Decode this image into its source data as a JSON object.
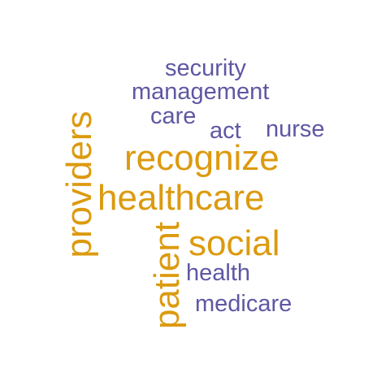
{
  "colors": {
    "background": "#ffffff",
    "purple": "#5e57a3",
    "gold": "#dc9a0e"
  },
  "words": {
    "security": "security",
    "management": "management",
    "care": "care",
    "act": "act",
    "nurse": "nurse",
    "recognize": "recognize",
    "providers": "providers",
    "healthcare": "healthcare",
    "social": "social",
    "patient": "patient",
    "health": "health",
    "medicare": "medicare"
  },
  "word_orientation": {
    "providers": "vertical",
    "patient": "vertical"
  },
  "word_color": {
    "security": "purple",
    "management": "purple",
    "care": "purple",
    "act": "purple",
    "nurse": "purple",
    "health": "purple",
    "medicare": "purple",
    "recognize": "gold",
    "providers": "gold",
    "healthcare": "gold",
    "social": "gold",
    "patient": "gold"
  }
}
